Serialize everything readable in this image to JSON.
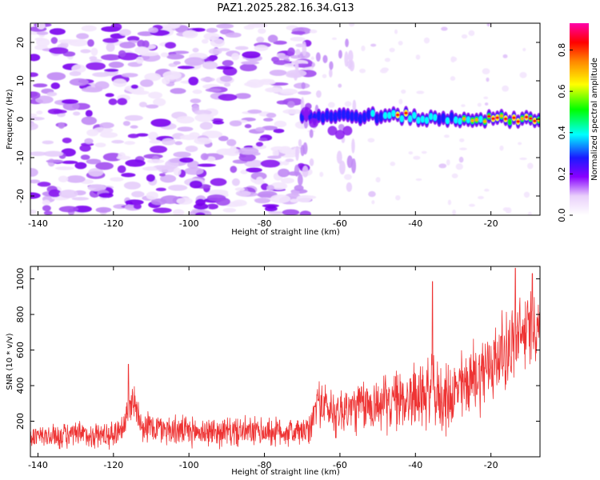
{
  "chart_data": [
    {
      "type": "heatmap",
      "title": "PAZ1.2025.282.16.34.G13",
      "xlabel": "Height of straight line (km)",
      "ylabel": "Frequency (Hz)",
      "xlim": [
        -142,
        -7
      ],
      "ylim": [
        -25,
        25
      ],
      "xticks": [
        -140,
        -120,
        -100,
        -80,
        -60,
        -40,
        -20
      ],
      "yticks": [
        -20,
        -10,
        0,
        10,
        20
      ],
      "colorbar": {
        "label": "Normalized spectral amplitude",
        "range": [
          0,
          0.93
        ],
        "ticks": [
          "0.0",
          "0.2",
          "0.4",
          "0.6",
          "0.8"
        ]
      },
      "description_of_field": {
        "noise_region_x": [
          -142,
          -70
        ],
        "signal_onset_x": -70,
        "signal_frequency_hz": 0.5,
        "amplitude_trend": [
          {
            "x": -68,
            "amp": 0.3
          },
          {
            "x": -60,
            "amp": 0.25
          },
          {
            "x": -52,
            "amp": 0.45
          },
          {
            "x": -44,
            "amp": 0.8
          },
          {
            "x": -36,
            "amp": 0.55
          },
          {
            "x": -28,
            "amp": 0.55
          },
          {
            "x": -22,
            "amp": 0.85
          },
          {
            "x": -15,
            "amp": 0.8
          },
          {
            "x": -10,
            "amp": 0.9
          }
        ]
      }
    },
    {
      "type": "line",
      "title": "",
      "xlabel": "Height of straight line (km)",
      "ylabel": "SNR (10 * v/v)",
      "xlim": [
        -142,
        -7
      ],
      "ylim": [
        0,
        1070
      ],
      "xticks": [
        -140,
        -120,
        -100,
        -80,
        -60,
        -40,
        -20
      ],
      "yticks": [
        200,
        400,
        600,
        800,
        1000
      ],
      "series": [
        {
          "name": "SNR",
          "color": "#ee3333",
          "envelope": {
            "x": [
              -142,
              -130,
              -120,
              -117,
              -115,
              -112,
              -100,
              -80,
              -68,
              -66,
              -62,
              -55,
              -48,
              -42,
              -36,
              -32,
              -26,
              -20,
              -16,
              -13,
              -10,
              -7
            ],
            "mean": [
              110,
              120,
              125,
              190,
              330,
              170,
              140,
              140,
              140,
              320,
              250,
              280,
              300,
              330,
              360,
              320,
              420,
              520,
              600,
              650,
              720,
              760
            ],
            "amp": [
              80,
              90,
              90,
              110,
              130,
              110,
              100,
              100,
              100,
              150,
              170,
              180,
              190,
              210,
              240,
              230,
              250,
              270,
              260,
              280,
              260,
              220
            ]
          },
          "peaks": [
            {
              "x": -116,
              "y": 520
            },
            {
              "x": -35.5,
              "y": 985
            },
            {
              "x": -13.5,
              "y": 1060
            },
            {
              "x": -9,
              "y": 1030
            }
          ]
        }
      ]
    }
  ]
}
